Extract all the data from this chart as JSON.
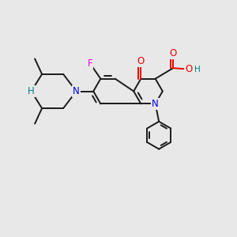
{
  "bg_color": "#e8e8e8",
  "bond_color": "#1a1a1a",
  "bond_width": 1.4,
  "atom_colors": {
    "C": "#1a1a1a",
    "N": "#0000ee",
    "O": "#ee0000",
    "F": "#ee00ee",
    "H": "#008080"
  },
  "font_size": 8.5
}
